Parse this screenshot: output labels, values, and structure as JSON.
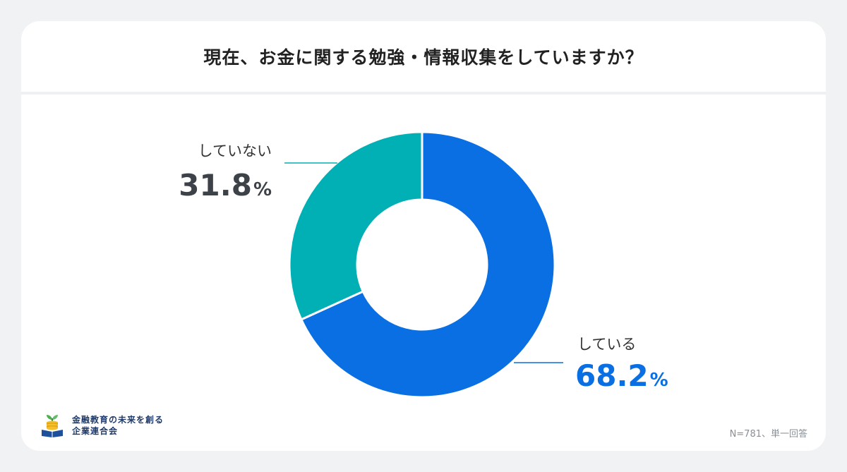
{
  "title": "現在、お金に関する勉強・情報収集をしていますか？",
  "chart_data": {
    "type": "pie",
    "donut": true,
    "categories": [
      "している",
      "していない"
    ],
    "values": [
      68.2,
      31.8
    ],
    "value_suffix": "%",
    "colors": [
      "#0a6fe2",
      "#00b0b4"
    ],
    "value_label_colors": [
      "#0a6fe2",
      "#3d4249"
    ]
  },
  "footer": {
    "logo_line1": "金融教育の未来を創る",
    "logo_line2": "企業連合会",
    "note": "N=781、単一回答"
  }
}
